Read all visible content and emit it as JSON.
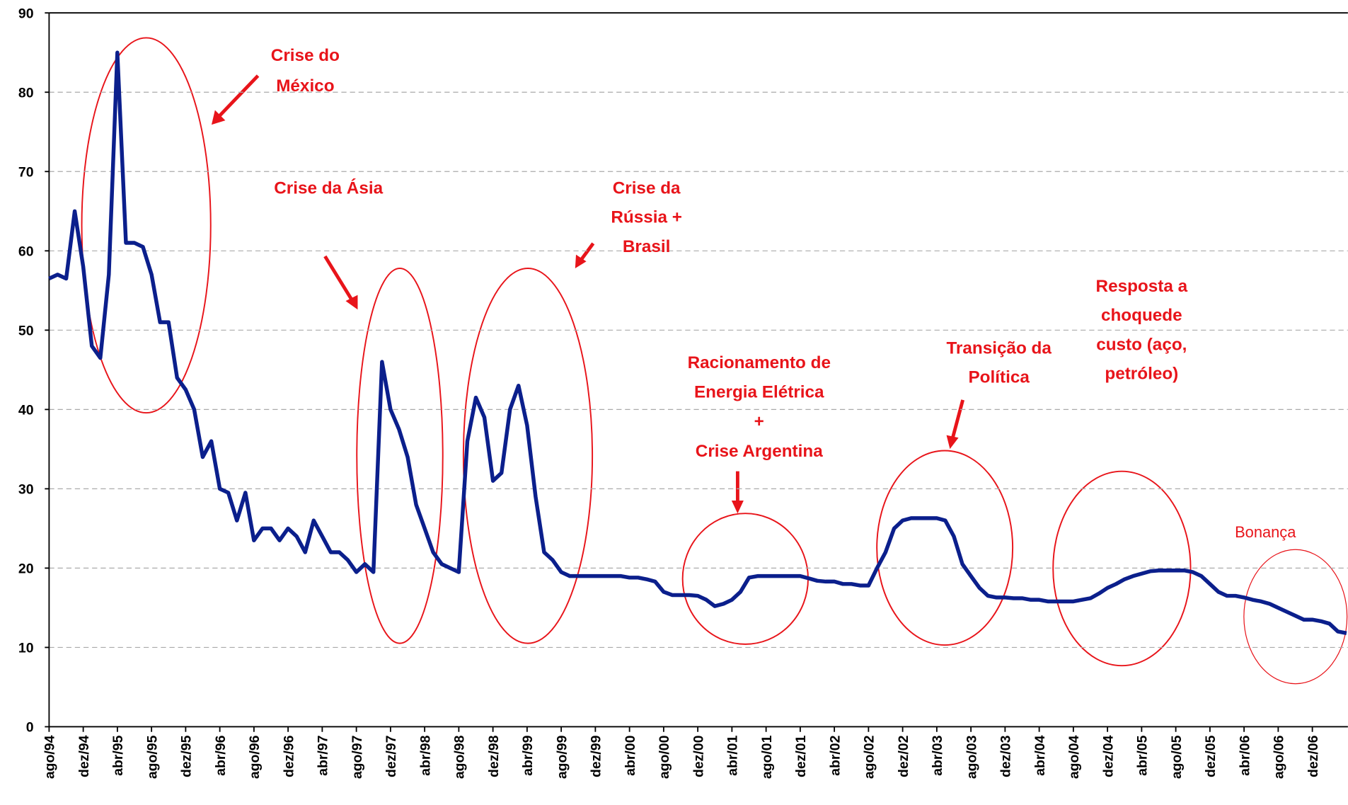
{
  "chart_data": {
    "type": "line",
    "categories": [
      "ago/94",
      null,
      null,
      null,
      "dez/94",
      null,
      null,
      null,
      "abr/95",
      null,
      null,
      null,
      "ago/95",
      null,
      null,
      null,
      "dez/95",
      null,
      null,
      null,
      "abr/96",
      null,
      null,
      null,
      "ago/96",
      null,
      null,
      null,
      "dez/96",
      null,
      null,
      null,
      "abr/97",
      null,
      null,
      null,
      "ago/97",
      null,
      null,
      null,
      "dez/97",
      null,
      null,
      null,
      "abr/98",
      null,
      null,
      null,
      "ago/98",
      null,
      null,
      null,
      "dez/98",
      null,
      null,
      null,
      "abr/99",
      null,
      null,
      null,
      "ago/99",
      null,
      null,
      null,
      "dez/99",
      null,
      null,
      null,
      "abr/00",
      null,
      null,
      null,
      "ago/00",
      null,
      null,
      null,
      "dez/00",
      null,
      null,
      null,
      "abr/01",
      null,
      null,
      null,
      "ago/01",
      null,
      null,
      null,
      "dez/01",
      null,
      null,
      null,
      "abr/02",
      null,
      null,
      null,
      "ago/02",
      null,
      null,
      null,
      "dez/02",
      null,
      null,
      null,
      "abr/03",
      null,
      null,
      null,
      "ago/03",
      null,
      null,
      null,
      "dez/03",
      null,
      null,
      null,
      "abr/04",
      null,
      null,
      null,
      "ago/04",
      null,
      null,
      null,
      "dez/04",
      null,
      null,
      null,
      "abr/05",
      null,
      null,
      null,
      "ago/05",
      null,
      null,
      null,
      "dez/05",
      null,
      null,
      null,
      "abr/06",
      null,
      null,
      null,
      "ago/06",
      null,
      null,
      null,
      "dez/06",
      null,
      null,
      null,
      null
    ],
    "series": [
      {
        "color": "#0b1f8c",
        "values": [
          56.5,
          57,
          56.5,
          65,
          58,
          48,
          46.5,
          57,
          85,
          61,
          61,
          60.5,
          57,
          51,
          51,
          44,
          42.5,
          40,
          34,
          36,
          30,
          29.5,
          26,
          29.5,
          23.5,
          25,
          25,
          23.5,
          25,
          24,
          22,
          26,
          24,
          22,
          22,
          21,
          19.5,
          20.5,
          19.5,
          46,
          40,
          37.5,
          34,
          28,
          25,
          22,
          20.5,
          20,
          19.5,
          36,
          41.5,
          39,
          31,
          32,
          40,
          43,
          38,
          29,
          22,
          21,
          19.5,
          19,
          19,
          19,
          19,
          19,
          19,
          19,
          18.8,
          18.8,
          18.6,
          18.3,
          17,
          16.6,
          16.6,
          16.6,
          16.5,
          16,
          15.2,
          15.5,
          16,
          17,
          18.8,
          19,
          19,
          19,
          19,
          19,
          19,
          18.7,
          18.4,
          18.3,
          18.3,
          18,
          18,
          17.8,
          17.8,
          20,
          22,
          25,
          26,
          26.3,
          26.3,
          26.3,
          26.3,
          26,
          24,
          20.5,
          19,
          17.5,
          16.5,
          16.3,
          16.3,
          16.2,
          16.2,
          16,
          16,
          15.8,
          15.8,
          15.8,
          15.8,
          16,
          16.2,
          16.8,
          17.5,
          18,
          18.6,
          19,
          19.3,
          19.6,
          19.7,
          19.7,
          19.7,
          19.7,
          19.5,
          19,
          18,
          17,
          16.5,
          16.5,
          16.3,
          16,
          15.8,
          15.5,
          15,
          14.5,
          14,
          13.5,
          13.5,
          13.3,
          13,
          12,
          11.8
        ]
      }
    ],
    "ylim": [
      0,
      90
    ],
    "yticks": [
      0,
      10,
      20,
      30,
      40,
      50,
      60,
      70,
      80,
      90
    ],
    "grid": true,
    "annotations": [
      {
        "lines": [
          "Crise do",
          "México"
        ]
      },
      {
        "lines": [
          "Crise da Ásia"
        ]
      },
      {
        "lines": [
          "Crise da",
          "Rússia +",
          "Brasil"
        ]
      },
      {
        "lines": [
          "Racionamento de",
          "Energia Elétrica",
          "+",
          "Crise Argentina"
        ]
      },
      {
        "lines": [
          "Transição da",
          "Política"
        ]
      },
      {
        "lines": [
          "Resposta a",
          "choquede",
          "custo (aço,",
          "petróleo)"
        ]
      },
      {
        "lines": [
          "Bonança"
        ]
      }
    ]
  }
}
